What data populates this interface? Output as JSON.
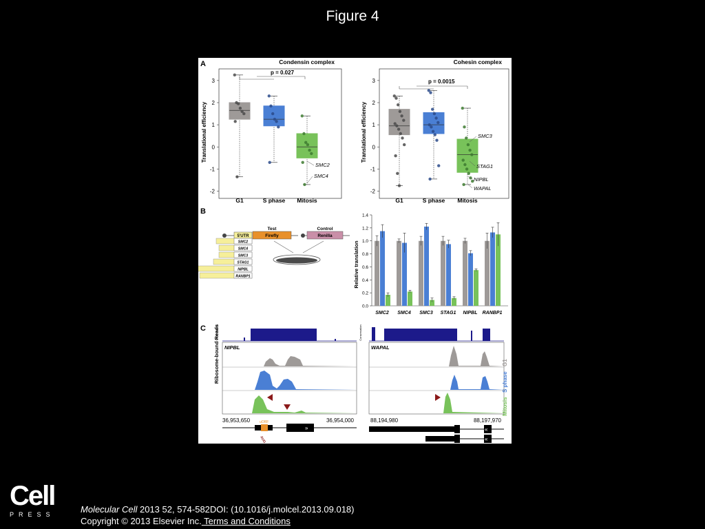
{
  "slide_title": "Figure 4",
  "logo": {
    "cell": "Cell",
    "press": "PRESS"
  },
  "citation": {
    "journal": "Molecular Cell",
    "ref": " 2013 52, 574-582DOI: (10.1016/j.molcel.2013.09.018)",
    "copyright": "Copyright © 2013 Elsevier Inc.",
    "terms_link": " Terms and Conditions"
  },
  "colors": {
    "g1": "#9e9a98",
    "s_phase": "#4a7fd4",
    "mitosis": "#78c25a",
    "navy": "#1c1a8a",
    "arrow": "#8b1a1a",
    "uorf": "#e8902a",
    "yellow": "#f6ef9a"
  },
  "panel_a": {
    "label": "A",
    "ylabel": "Translational efficiency",
    "yticks": [
      "-2",
      "-1",
      "0",
      "1",
      "2",
      "3"
    ],
    "groups": [
      "G1",
      "S phase",
      "Mitosis"
    ],
    "condensin": {
      "title": "Condensin complex",
      "pvalue": "p = 0.027",
      "annotations": [
        "SMC2",
        "SMC4"
      ],
      "chart_data": {
        "type": "box",
        "ylim": [
          -2.2,
          3.4
        ],
        "boxes": [
          {
            "group": "G1",
            "q1": 1.25,
            "median": 1.65,
            "q3": 2.0,
            "whisker_low": -1.35,
            "whisker_high": 3.25,
            "points": [
              3.25,
              2.0,
              1.95,
              1.75,
              1.6,
              1.5,
              1.15,
              -1.35
            ]
          },
          {
            "group": "S phase",
            "q1": 0.95,
            "median": 1.25,
            "q3": 1.85,
            "whisker_low": -0.7,
            "whisker_high": 2.3,
            "points": [
              2.3,
              1.85,
              1.5,
              1.25,
              1.15,
              0.9,
              -0.7
            ]
          },
          {
            "group": "Mitosis",
            "q1": -0.5,
            "median": 0.0,
            "q3": 0.6,
            "whisker_low": -1.7,
            "whisker_high": 1.4,
            "points": [
              1.4,
              0.6,
              0.2,
              0.1,
              -0.15,
              -0.3,
              -0.7,
              -1.7
            ]
          }
        ]
      }
    },
    "cohesin": {
      "title": "Cohesin complex",
      "pvalue": "p = 0.0015",
      "annotations": [
        "SMC3",
        "STAG1",
        "NIPBL",
        "WAPAL"
      ],
      "chart_data": {
        "type": "box",
        "ylim": [
          -2.2,
          3.4
        ],
        "boxes": [
          {
            "group": "G1",
            "q1": 0.55,
            "median": 0.95,
            "q3": 1.7,
            "whisker_low": -1.75,
            "whisker_high": 2.3,
            "points": [
              2.3,
              2.2,
              1.9,
              1.6,
              1.4,
              1.2,
              1.05,
              0.95,
              0.8,
              0.6,
              0.4,
              0.1,
              -0.4,
              -1.2,
              -1.75
            ]
          },
          {
            "group": "S phase",
            "q1": 0.6,
            "median": 1.0,
            "q3": 1.55,
            "whisker_low": -1.45,
            "whisker_high": 2.55,
            "points": [
              2.55,
              2.45,
              1.7,
              1.5,
              1.3,
              1.1,
              1.0,
              0.9,
              0.7,
              0.55,
              0.3,
              -0.85,
              -1.45
            ]
          },
          {
            "group": "Mitosis",
            "q1": -1.15,
            "median": -0.35,
            "q3": 0.35,
            "whisker_low": -1.7,
            "whisker_high": 1.75,
            "points": [
              1.75,
              0.9,
              0.4,
              0.1,
              -0.15,
              -0.35,
              -0.6,
              -0.8,
              -1.0,
              -1.2,
              -1.4,
              -1.55,
              -1.7
            ]
          }
        ]
      }
    }
  },
  "panel_b": {
    "label": "B",
    "test_label": "Test",
    "control_label": "Control",
    "utr_label": "5'UTR",
    "firefly": "Firefly",
    "renilla": "Renilla",
    "utrs": [
      "SMC2",
      "SMC4",
      "SMC3",
      "STAG1",
      "NIPBL",
      "RANBP1"
    ],
    "chart_data": {
      "type": "bar",
      "ylabel": "Relative translation",
      "ylim": [
        0,
        1.4
      ],
      "yticks": [
        "0.0",
        "0.2",
        "0.4",
        "0.6",
        "0.8",
        "1.0",
        "1.2",
        "1.4"
      ],
      "categories": [
        "SMC2",
        "SMC4",
        "SMC3",
        "STAG1",
        "NIPBL",
        "RANBP1"
      ],
      "series": [
        {
          "values": [
            1.0,
            1.0,
            1.0,
            1.0,
            1.0,
            1.0
          ],
          "errors": [
            0.08,
            0.03,
            0.07,
            0.07,
            0.04,
            0.12
          ]
        },
        {
          "values": [
            1.15,
            0.97,
            1.22,
            0.95,
            0.81,
            1.13
          ],
          "errors": [
            0.1,
            0.15,
            0.05,
            0.06,
            0.04,
            0.08
          ]
        },
        {
          "values": [
            0.17,
            0.22,
            0.09,
            0.12,
            0.55,
            1.1
          ],
          "errors": [
            0.03,
            0.02,
            0.03,
            0.02,
            0.02,
            0.18
          ]
        }
      ]
    }
  },
  "panel_c": {
    "label": "C",
    "ylabel": "Ribosome-bound Reads",
    "conservation": "Conservation",
    "right_phases": [
      "G1",
      "S phase",
      "Mitosis"
    ],
    "nipbl": {
      "gene": "NIPBL",
      "coord_left": "36,953,650",
      "coord_right": "36,954,000",
      "uorf": "uORF",
      "aug": "AUG"
    },
    "wapal": {
      "gene": "WAPAL",
      "coord_left": "88,194,980",
      "coord_right": "88,197,970"
    }
  }
}
